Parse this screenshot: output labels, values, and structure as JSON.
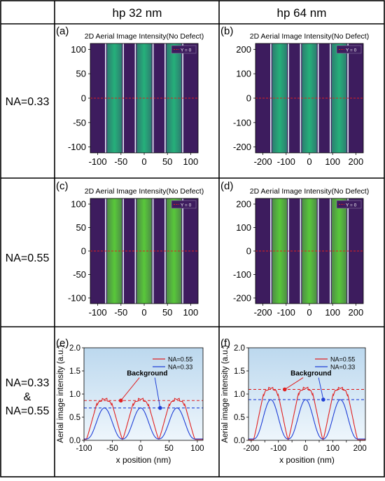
{
  "header": {
    "col1": "hp 32 nm",
    "col2": "hp 64 nm"
  },
  "rows": [
    {
      "label_lines": [
        "NA=0.33"
      ]
    },
    {
      "label_lines": [
        "NA=0.55"
      ]
    },
    {
      "label_lines": [
        "NA=0.33",
        "&",
        "NA=0.55"
      ]
    }
  ],
  "colors": {
    "bg_dark": "#3d1c5e",
    "stripe_033": "#25b07a",
    "stripe_055": "#58c83a",
    "edge": "#e8f4fb",
    "red_line": "#e02020",
    "blue_line": "#1f3fd6",
    "plot_bg_top": "#bcd8ee",
    "plot_bg_bottom": "#eef6fc"
  },
  "chart_data": [
    {
      "panel": "(a)",
      "type": "heatmap",
      "title": "2D Aerial Image Intensity(No Defect)",
      "legend": "Y = 0",
      "legend_position": "top-right",
      "x_ticks": [
        -100,
        -50,
        0,
        50,
        100
      ],
      "y_ticks": [
        100,
        50,
        0,
        -50,
        -100
      ],
      "xlim": [
        -116,
        116
      ],
      "ylim": [
        -112,
        112
      ],
      "stripe_centers": [
        -64,
        0,
        64
      ],
      "stripe_color": "#25b07a"
    },
    {
      "panel": "(b)",
      "type": "heatmap",
      "title": "2D Aerial Image Intensity(No Defect)",
      "legend": "Y = 0",
      "legend_position": "top-right",
      "x_ticks": [
        -200,
        -100,
        0,
        100,
        200
      ],
      "y_ticks": [
        200,
        100,
        0,
        -100,
        -200
      ],
      "xlim": [
        -232,
        232
      ],
      "ylim": [
        -224,
        224
      ],
      "stripe_centers": [
        -128,
        0,
        128
      ],
      "stripe_color": "#25b07a"
    },
    {
      "panel": "(c)",
      "type": "heatmap",
      "title": "2D Aerial Image Intensity(No Defect)",
      "legend": "Y = 0",
      "legend_position": "top-right",
      "x_ticks": [
        -100,
        -50,
        0,
        50,
        100
      ],
      "y_ticks": [
        100,
        50,
        0,
        -50,
        -100
      ],
      "xlim": [
        -116,
        116
      ],
      "ylim": [
        -112,
        112
      ],
      "stripe_centers": [
        -64,
        0,
        64
      ],
      "stripe_color": "#58c83a"
    },
    {
      "panel": "(d)",
      "type": "heatmap",
      "title": "2D Aerial Image Intensity(No Defect)",
      "legend": "Y = 0",
      "legend_position": "top-right",
      "x_ticks": [
        -200,
        -100,
        0,
        100,
        200
      ],
      "y_ticks": [
        200,
        100,
        0,
        -100,
        -200
      ],
      "xlim": [
        -232,
        232
      ],
      "ylim": [
        -224,
        224
      ],
      "stripe_centers": [
        -128,
        0,
        128
      ],
      "stripe_color": "#58c83a"
    },
    {
      "panel": "(e)",
      "type": "line",
      "xlabel": "x position (nm)",
      "ylabel": "Aerial image intensity (a.u.)",
      "xlim": [
        -100,
        110
      ],
      "ylim": [
        0,
        2.0
      ],
      "x_ticks": [
        -100,
        -50,
        0,
        50,
        100
      ],
      "y_ticks": [
        0.0,
        0.5,
        1.0,
        1.5,
        2.0
      ],
      "legend_position": "top-right",
      "annotation": "Background",
      "peaks": [
        -64,
        0,
        64
      ],
      "period": 64,
      "series": [
        {
          "name": "NA=0.55",
          "color": "#e02020",
          "peak": 0.88,
          "min": 0.02,
          "background": 0.86
        },
        {
          "name": "NA=0.33",
          "color": "#1f3fd6",
          "peak": 0.7,
          "min": 0.03,
          "background": 0.7
        }
      ]
    },
    {
      "panel": "(f)",
      "type": "line",
      "xlabel": "x position (nm)",
      "ylabel": "Aerial image intensity (a.u.)",
      "xlim": [
        -210,
        220
      ],
      "ylim": [
        0,
        2.0
      ],
      "x_ticks": [
        -200,
        -150,
        -100,
        -50,
        0,
        50,
        100,
        150,
        200
      ],
      "y_ticks": [
        0.0,
        0.5,
        1.0,
        1.5,
        2.0
      ],
      "legend_position": "top-right",
      "annotation": "Background",
      "peaks": [
        -128,
        0,
        128
      ],
      "period": 128,
      "series": [
        {
          "name": "NA=0.55",
          "color": "#e02020",
          "peak": 1.12,
          "min": 0.01,
          "background": 1.1
        },
        {
          "name": "NA=0.33",
          "color": "#1f3fd6",
          "peak": 0.88,
          "min": 0.03,
          "background": 0.88
        }
      ]
    }
  ]
}
